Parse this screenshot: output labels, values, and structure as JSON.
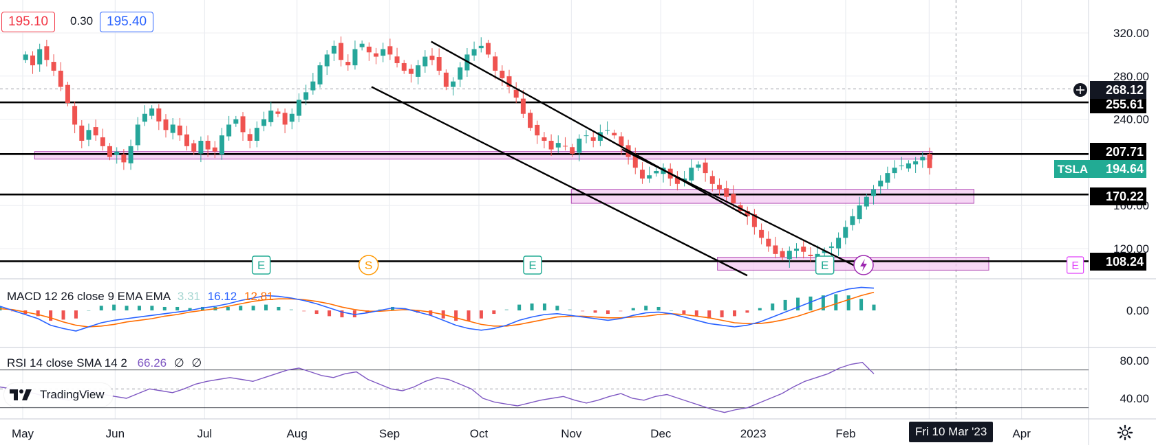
{
  "header": {
    "bid": "195.10",
    "spread": "0.30",
    "ask": "195.40"
  },
  "symbol": "TSLA",
  "last_price": "194.64",
  "logo_text": "TradingView",
  "cursor_date": "Fri 10 Mar '23",
  "colors": {
    "up": "#26a69a",
    "down": "#ef5350",
    "zone_fill": "#f3c9f1",
    "zone_stroke": "#b24db5",
    "macd_line": "#2962ff",
    "signal_line": "#ff6d00",
    "rsi_line": "#7e57c2",
    "earnings_green": "#22ab94",
    "split_orange": "#ff9800",
    "dividend_purple": "#9c27b0"
  },
  "chart_data": {
    "type": "candlestick",
    "symbol": "TSLA",
    "x_labels": [
      "May",
      "Jun",
      "Jul",
      "Aug",
      "Sep",
      "Oct",
      "Nov",
      "Dec",
      "2023",
      "Feb",
      "Apr"
    ],
    "price_axis": {
      "ticks": [
        "320.00",
        "280.00",
        "240.00",
        "160.00",
        "120.00"
      ],
      "range": [
        96,
        345
      ]
    },
    "horizontal_levels": [
      {
        "label": "255.61",
        "value": 255.61
      },
      {
        "label": "207.71",
        "value": 207.71
      },
      {
        "label": "170.22",
        "value": 170.22
      },
      {
        "label": "108.24",
        "value": 108.24
      }
    ],
    "crosshair_price": "268.12",
    "zones": [
      {
        "from": "2022-05-05",
        "to": "2023-03-02",
        "low": 203,
        "high": 210
      },
      {
        "from": "2022-11-01",
        "to": "2023-03-16",
        "low": 162,
        "high": 175
      },
      {
        "from": "2022-12-20",
        "to": "2023-03-21",
        "low": 100,
        "high": 112
      }
    ],
    "trendlines": [
      {
        "from": [
          "2022-09-15",
          312
        ],
        "to": [
          "2022-12-30",
          150
        ]
      },
      {
        "from": [
          "2022-08-26",
          270
        ],
        "to": [
          "2022-12-30",
          95
        ]
      },
      {
        "from": [
          "2022-11-18",
          212
        ],
        "to": [
          "2023-02-07",
          100
        ]
      }
    ],
    "events": [
      {
        "date": "2022-07-20",
        "type": "earnings",
        "letter": "E"
      },
      {
        "date": "2022-08-25",
        "type": "split",
        "letter": "S"
      },
      {
        "date": "2022-10-19",
        "type": "earnings",
        "letter": "E"
      },
      {
        "date": "2023-01-25",
        "type": "earnings",
        "letter": "E"
      },
      {
        "date": "2023-02-07",
        "type": "dividend",
        "letter": "⚡"
      },
      {
        "date": "2023-04-19",
        "type": "earnings-upcoming",
        "letter": "E"
      }
    ],
    "candles": {
      "start_date": "2022-05-02",
      "step_days": 2.35,
      "close": [
        300,
        290,
        305,
        295,
        285,
        270,
        255,
        235,
        220,
        230,
        225,
        215,
        205,
        210,
        200,
        215,
        235,
        245,
        250,
        238,
        230,
        235,
        225,
        215,
        210,
        220,
        212,
        210,
        225,
        235,
        240,
        228,
        220,
        232,
        240,
        248,
        245,
        235,
        245,
        258,
        265,
        275,
        290,
        300,
        308,
        295,
        290,
        305,
        310,
        302,
        298,
        305,
        300,
        292,
        285,
        282,
        290,
        298,
        295,
        285,
        270,
        275,
        288,
        300,
        305,
        308,
        300,
        285,
        278,
        270,
        260,
        245,
        232,
        225,
        220,
        212,
        218,
        215,
        208,
        222,
        225,
        220,
        228,
        230,
        225,
        215,
        205,
        195,
        185,
        188,
        192,
        195,
        185,
        180,
        185,
        195,
        198,
        190,
        180,
        175,
        168,
        162,
        155,
        150,
        140,
        130,
        122,
        115,
        112,
        118,
        120,
        117,
        113,
        115,
        118,
        122,
        130,
        140,
        150,
        160,
        168,
        175,
        183,
        190,
        195,
        197,
        199,
        201,
        205,
        194.64
      ]
    },
    "macd": {
      "label": "MACD 12 26 close 9 EMA EMA",
      "values": [
        "3.31",
        "16.12",
        "12.81"
      ],
      "axis_tick": "0.00",
      "macd_line": [
        5,
        0,
        -5,
        -10,
        -18,
        -22,
        -25,
        -20,
        -15,
        -12,
        -10,
        -8,
        -6,
        -4,
        -2,
        0,
        3,
        5,
        8,
        12,
        15,
        18,
        17,
        15,
        12,
        8,
        3,
        -2,
        -5,
        -3,
        0,
        3,
        2,
        -2,
        -6,
        -12,
        -18,
        -22,
        -24,
        -22,
        -18,
        -12,
        -8,
        -5,
        -4,
        -6,
        -8,
        -10,
        -12,
        -10,
        -6,
        -3,
        -2,
        -4,
        -8,
        -12,
        -16,
        -18,
        -20,
        -18,
        -14,
        -8,
        -2,
        4,
        10,
        16,
        22,
        26,
        28,
        27
      ],
      "signal_line": [
        2,
        1,
        -2,
        -5,
        -9,
        -14,
        -18,
        -20,
        -19,
        -17,
        -14,
        -12,
        -10,
        -7,
        -5,
        -2,
        0,
        2,
        5,
        8,
        11,
        13,
        14,
        14,
        13,
        11,
        8,
        4,
        1,
        -1,
        -1,
        0,
        1,
        0,
        -2,
        -5,
        -9,
        -13,
        -17,
        -19,
        -19,
        -17,
        -14,
        -11,
        -8,
        -7,
        -7,
        -8,
        -9,
        -9,
        -8,
        -7,
        -5,
        -4,
        -5,
        -7,
        -9,
        -12,
        -15,
        -16,
        -16,
        -14,
        -11,
        -7,
        -2,
        3,
        8,
        13,
        18,
        22
      ]
    },
    "rsi": {
      "label": "RSI 14 close SMA 14 2",
      "values": [
        "66.26",
        "∅",
        "∅"
      ],
      "axis_ticks": [
        "80.00",
        "40.00"
      ],
      "series": [
        52,
        50,
        48,
        45,
        42,
        40,
        38,
        45,
        48,
        44,
        42,
        40,
        45,
        50,
        48,
        46,
        50,
        55,
        58,
        60,
        62,
        60,
        58,
        62,
        66,
        70,
        72,
        68,
        64,
        62,
        66,
        68,
        60,
        55,
        50,
        48,
        52,
        58,
        62,
        60,
        55,
        50,
        40,
        36,
        34,
        32,
        35,
        38,
        40,
        42,
        38,
        35,
        38,
        42,
        45,
        40,
        38,
        42,
        44,
        40,
        36,
        32,
        28,
        25,
        28,
        30,
        35,
        40,
        45,
        52,
        58,
        62,
        66,
        72,
        76,
        78,
        66
      ]
    }
  }
}
